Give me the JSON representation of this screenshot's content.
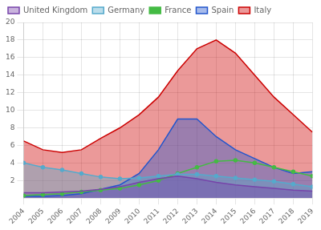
{
  "chart_data": {
    "type": "line",
    "x": [
      2004,
      2005,
      2006,
      2007,
      2008,
      2009,
      2010,
      2011,
      2012,
      2013,
      2014,
      2015,
      2016,
      2017,
      2018,
      2019
    ],
    "series": [
      {
        "name": "Italy",
        "color": "#cc0000",
        "type": "area",
        "values": [
          6.5,
          5.5,
          5.2,
          5.5,
          6.8,
          8.0,
          9.5,
          11.5,
          14.5,
          17.0,
          18.0,
          16.5,
          14.0,
          11.5,
          9.5,
          7.5
        ]
      },
      {
        "name": "France",
        "color": "#44bb44",
        "type": "line",
        "marker": "o",
        "values": [
          0.3,
          0.4,
          0.5,
          0.7,
          0.9,
          1.1,
          1.5,
          2.0,
          2.8,
          3.5,
          4.2,
          4.3,
          4.0,
          3.5,
          3.0,
          2.5
        ]
      },
      {
        "name": "Germany",
        "color": "#55aacc",
        "type": "area",
        "marker": "o",
        "values": [
          4.0,
          3.5,
          3.2,
          2.8,
          2.4,
          2.2,
          2.3,
          2.5,
          2.7,
          2.7,
          2.5,
          2.3,
          2.1,
          1.9,
          1.6,
          1.3
        ]
      },
      {
        "name": "Spain",
        "color": "#2255cc",
        "type": "area",
        "values": [
          0.2,
          0.2,
          0.3,
          0.5,
          1.0,
          1.5,
          2.8,
          5.5,
          9.0,
          9.0,
          7.0,
          5.5,
          4.5,
          3.5,
          2.8,
          3.0
        ]
      },
      {
        "name": "United Kingdom",
        "color": "#7744aa",
        "type": "area",
        "values": [
          0.6,
          0.6,
          0.7,
          0.8,
          1.0,
          1.3,
          1.8,
          2.2,
          2.5,
          2.2,
          1.8,
          1.5,
          1.3,
          1.1,
          0.9,
          0.8
        ]
      }
    ],
    "xlim": [
      2004,
      2019
    ],
    "xticks": [
      2004,
      2005,
      2006,
      2007,
      2008,
      2009,
      2010,
      2011,
      2012,
      2013,
      2014,
      2015,
      2016,
      2017,
      2018,
      2019
    ],
    "ylim": [
      0,
      20
    ],
    "yticks": [
      2,
      4,
      6,
      8,
      10,
      12,
      14,
      16,
      18,
      20
    ],
    "grid": true,
    "legend": "upper left"
  }
}
